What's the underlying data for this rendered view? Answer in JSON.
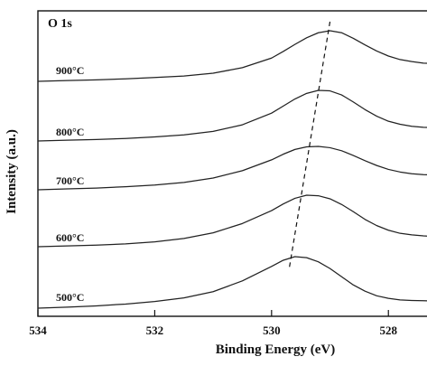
{
  "chart_data": {
    "type": "line",
    "title": "O 1s",
    "xlabel": "Binding Energy (eV)",
    "ylabel": "Intensity (a.u.)",
    "xlim": [
      534,
      527.2
    ],
    "x_reversed": true,
    "x_ticks": [
      534,
      532,
      530,
      528
    ],
    "x_tick_labels": [
      "534",
      "532",
      "530",
      "528"
    ],
    "grid": false,
    "legend": "none",
    "peak_line_style": "dashed",
    "series": [
      {
        "name": "900°C",
        "x": [
          534,
          533.5,
          533,
          532.5,
          532,
          531.5,
          531,
          530.5,
          530,
          529.8,
          529.6,
          529.4,
          529.2,
          529,
          528.8,
          528.6,
          528.4,
          528.2,
          528,
          527.8,
          527.6,
          527.4,
          527.2
        ],
        "y": [
          0.0,
          0.15,
          0.3,
          0.5,
          0.75,
          1.05,
          1.6,
          2.7,
          4.6,
          5.9,
          7.3,
          8.6,
          9.6,
          10.0,
          9.6,
          8.5,
          7.2,
          6.0,
          5.0,
          4.3,
          3.9,
          3.6,
          3.5
        ]
      },
      {
        "name": "800°C",
        "x": [
          534,
          533.5,
          533,
          532.5,
          532,
          531.5,
          531,
          530.5,
          530,
          529.8,
          529.6,
          529.4,
          529.2,
          529,
          528.8,
          528.6,
          528.4,
          528.2,
          528,
          527.8,
          527.6,
          527.4,
          527.2
        ],
        "y": [
          0.0,
          0.15,
          0.3,
          0.5,
          0.8,
          1.2,
          1.9,
          3.2,
          5.5,
          6.9,
          8.3,
          9.4,
          10.0,
          9.9,
          9.1,
          7.7,
          6.2,
          4.9,
          3.9,
          3.3,
          2.9,
          2.7,
          2.6
        ]
      },
      {
        "name": "700°C",
        "x": [
          534,
          533.5,
          533,
          532.5,
          532,
          531.5,
          531,
          530.5,
          530,
          529.8,
          529.6,
          529.4,
          529.2,
          529,
          528.8,
          528.6,
          528.4,
          528.2,
          528,
          527.8,
          527.6,
          527.4,
          527.2
        ],
        "y": [
          0.0,
          0.2,
          0.4,
          0.7,
          1.1,
          1.7,
          2.7,
          4.4,
          6.9,
          8.2,
          9.3,
          9.9,
          10.0,
          9.7,
          9.0,
          7.9,
          6.7,
          5.6,
          4.7,
          4.1,
          3.7,
          3.5,
          3.4
        ]
      },
      {
        "name": "600°C",
        "x": [
          534,
          533.5,
          533,
          532.5,
          532,
          531.5,
          531,
          530.5,
          530,
          529.8,
          529.6,
          529.4,
          529.2,
          529,
          528.8,
          528.6,
          528.4,
          528.2,
          528,
          527.8,
          527.6,
          527.4,
          527.2
        ],
        "y": [
          0.0,
          0.15,
          0.3,
          0.55,
          0.95,
          1.6,
          2.7,
          4.5,
          7.0,
          8.3,
          9.4,
          10.0,
          9.9,
          9.3,
          8.2,
          6.8,
          5.3,
          4.1,
          3.2,
          2.6,
          2.3,
          2.1,
          2.0
        ]
      },
      {
        "name": "500°C",
        "x": [
          534,
          533.5,
          533,
          532.5,
          532,
          531.5,
          531,
          530.5,
          530,
          529.8,
          529.6,
          529.4,
          529.2,
          529,
          528.8,
          528.6,
          528.4,
          528.2,
          528,
          527.8,
          527.6,
          527.4,
          527.2
        ],
        "y": [
          0.0,
          0.2,
          0.45,
          0.8,
          1.3,
          2.0,
          3.2,
          5.3,
          8.1,
          9.3,
          10.0,
          9.8,
          9.0,
          7.7,
          6.1,
          4.5,
          3.3,
          2.4,
          1.9,
          1.6,
          1.5,
          1.45,
          1.4
        ]
      }
    ],
    "peak_positions": {
      "900°C": 529.0,
      "800°C": 529.15,
      "700°C": 529.3,
      "600°C": 529.45,
      "500°C": 529.7
    }
  }
}
